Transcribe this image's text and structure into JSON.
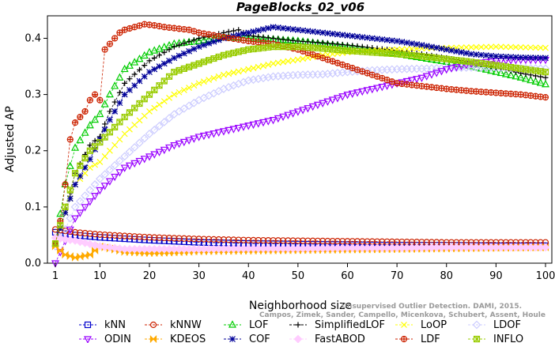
{
  "chart_data": {
    "type": "line",
    "title": "PageBlocks_02_v06",
    "xlabel": "Neighborhood size",
    "ylabel": "Adjusted AP",
    "xlim": [
      1,
      100
    ],
    "ylim": [
      0,
      0.44
    ],
    "xticks": [
      1,
      10,
      20,
      30,
      40,
      50,
      60,
      70,
      80,
      90,
      100
    ],
    "yticks": [
      0.0,
      0.1,
      0.2,
      0.3,
      0.4
    ],
    "ytick_labels": [
      "0.0",
      "0.1",
      "0.2",
      "0.3",
      "0.4"
    ],
    "grid": false,
    "legend_placement": "bottom",
    "watermark": [
      "Unsupervised Outlier Detection. DAMI, 2015.",
      "Campos, Zimek, Sander, Campello, Micenkova, Schubert, Assent, Houle"
    ],
    "series": [
      {
        "name": "kNN",
        "color": "#0000cc",
        "marker": "square",
        "line": "dash",
        "points": [
          [
            1,
            0.055
          ],
          [
            5,
            0.05
          ],
          [
            10,
            0.046
          ],
          [
            20,
            0.041
          ],
          [
            30,
            0.037
          ],
          [
            40,
            0.035
          ],
          [
            50,
            0.034
          ],
          [
            60,
            0.033
          ],
          [
            70,
            0.032
          ],
          [
            80,
            0.032
          ],
          [
            90,
            0.031
          ],
          [
            100,
            0.031
          ]
        ]
      },
      {
        "name": "kNNW",
        "color": "#cc2200",
        "marker": "circle",
        "line": "dash",
        "points": [
          [
            1,
            0.06
          ],
          [
            5,
            0.055
          ],
          [
            10,
            0.051
          ],
          [
            20,
            0.046
          ],
          [
            30,
            0.043
          ],
          [
            40,
            0.041
          ],
          [
            50,
            0.04
          ],
          [
            60,
            0.039
          ],
          [
            70,
            0.038
          ],
          [
            80,
            0.037
          ],
          [
            90,
            0.037
          ],
          [
            100,
            0.037
          ]
        ]
      },
      {
        "name": "LOF",
        "color": "#00cc00",
        "marker": "triangle-up",
        "line": "dash",
        "points": [
          [
            1,
            0.035
          ],
          [
            3,
            0.14
          ],
          [
            5,
            0.205
          ],
          [
            8,
            0.245
          ],
          [
            10,
            0.265
          ],
          [
            12,
            0.3
          ],
          [
            15,
            0.345
          ],
          [
            20,
            0.375
          ],
          [
            25,
            0.39
          ],
          [
            30,
            0.395
          ],
          [
            35,
            0.402
          ],
          [
            40,
            0.4
          ],
          [
            45,
            0.398
          ],
          [
            50,
            0.395
          ],
          [
            55,
            0.39
          ],
          [
            60,
            0.385
          ],
          [
            65,
            0.378
          ],
          [
            70,
            0.372
          ],
          [
            75,
            0.365
          ],
          [
            80,
            0.358
          ],
          [
            85,
            0.35
          ],
          [
            90,
            0.34
          ],
          [
            95,
            0.33
          ],
          [
            100,
            0.318
          ]
        ]
      },
      {
        "name": "SimplifiedLOF",
        "color": "#000000",
        "marker": "plus",
        "line": "dash",
        "points": [
          [
            1,
            0.035
          ],
          [
            3,
            0.09
          ],
          [
            5,
            0.16
          ],
          [
            8,
            0.21
          ],
          [
            10,
            0.225
          ],
          [
            12,
            0.27
          ],
          [
            15,
            0.32
          ],
          [
            20,
            0.36
          ],
          [
            25,
            0.385
          ],
          [
            30,
            0.4
          ],
          [
            35,
            0.41
          ],
          [
            38,
            0.415
          ],
          [
            40,
            0.405
          ],
          [
            45,
            0.4
          ],
          [
            50,
            0.395
          ],
          [
            55,
            0.392
          ],
          [
            60,
            0.388
          ],
          [
            65,
            0.383
          ],
          [
            70,
            0.378
          ],
          [
            75,
            0.372
          ],
          [
            80,
            0.365
          ],
          [
            85,
            0.357
          ],
          [
            90,
            0.348
          ],
          [
            95,
            0.338
          ],
          [
            100,
            0.33
          ]
        ]
      },
      {
        "name": "LoOP",
        "color": "#ffff00",
        "marker": "x",
        "line": "dash",
        "points": [
          [
            1,
            0.035
          ],
          [
            3,
            0.09
          ],
          [
            5,
            0.14
          ],
          [
            8,
            0.17
          ],
          [
            10,
            0.18
          ],
          [
            15,
            0.23
          ],
          [
            20,
            0.27
          ],
          [
            25,
            0.3
          ],
          [
            30,
            0.32
          ],
          [
            35,
            0.335
          ],
          [
            40,
            0.345
          ],
          [
            45,
            0.355
          ],
          [
            50,
            0.362
          ],
          [
            55,
            0.37
          ],
          [
            60,
            0.375
          ],
          [
            65,
            0.378
          ],
          [
            70,
            0.38
          ],
          [
            75,
            0.382
          ],
          [
            80,
            0.383
          ],
          [
            85,
            0.384
          ],
          [
            90,
            0.385
          ],
          [
            95,
            0.384
          ],
          [
            100,
            0.383
          ]
        ]
      },
      {
        "name": "LDOF",
        "color": "#ccccff",
        "marker": "diamond",
        "line": "dash",
        "points": [
          [
            1,
            0.03
          ],
          [
            3,
            0.06
          ],
          [
            5,
            0.1
          ],
          [
            10,
            0.15
          ],
          [
            15,
            0.19
          ],
          [
            20,
            0.23
          ],
          [
            25,
            0.265
          ],
          [
            30,
            0.29
          ],
          [
            35,
            0.31
          ],
          [
            40,
            0.325
          ],
          [
            45,
            0.332
          ],
          [
            50,
            0.335
          ],
          [
            55,
            0.336
          ],
          [
            60,
            0.34
          ],
          [
            65,
            0.343
          ],
          [
            70,
            0.345
          ],
          [
            75,
            0.346
          ],
          [
            80,
            0.347
          ],
          [
            85,
            0.348
          ],
          [
            90,
            0.348
          ],
          [
            95,
            0.347
          ],
          [
            100,
            0.346
          ]
        ]
      },
      {
        "name": "ODIN",
        "color": "#9900ff",
        "marker": "triangle-down",
        "line": "dash",
        "points": [
          [
            1,
            0.0
          ],
          [
            3,
            0.04
          ],
          [
            5,
            0.08
          ],
          [
            10,
            0.13
          ],
          [
            15,
            0.17
          ],
          [
            20,
            0.19
          ],
          [
            25,
            0.21
          ],
          [
            30,
            0.225
          ],
          [
            35,
            0.235
          ],
          [
            40,
            0.245
          ],
          [
            45,
            0.255
          ],
          [
            50,
            0.27
          ],
          [
            55,
            0.285
          ],
          [
            60,
            0.3
          ],
          [
            65,
            0.31
          ],
          [
            70,
            0.32
          ],
          [
            75,
            0.33
          ],
          [
            80,
            0.345
          ],
          [
            85,
            0.355
          ],
          [
            90,
            0.36
          ],
          [
            95,
            0.362
          ],
          [
            100,
            0.362
          ]
        ]
      },
      {
        "name": "KDEOS",
        "color": "#ffaa00",
        "marker": "bowtie",
        "line": "dash",
        "points": [
          [
            1,
            0.03
          ],
          [
            3,
            0.015
          ],
          [
            5,
            0.01
          ],
          [
            8,
            0.015
          ],
          [
            10,
            0.03
          ],
          [
            15,
            0.02
          ],
          [
            20,
            0.018
          ],
          [
            25,
            0.019
          ],
          [
            30,
            0.021
          ],
          [
            40,
            0.022
          ],
          [
            50,
            0.023
          ],
          [
            60,
            0.024
          ],
          [
            70,
            0.025
          ],
          [
            80,
            0.026
          ],
          [
            90,
            0.027
          ],
          [
            100,
            0.028
          ]
        ]
      },
      {
        "name": "COF",
        "color": "#000099",
        "marker": "asterisk",
        "line": "dash",
        "points": [
          [
            1,
            0.035
          ],
          [
            3,
            0.09
          ],
          [
            5,
            0.14
          ],
          [
            8,
            0.185
          ],
          [
            10,
            0.22
          ],
          [
            12,
            0.255
          ],
          [
            15,
            0.3
          ],
          [
            20,
            0.34
          ],
          [
            25,
            0.365
          ],
          [
            30,
            0.385
          ],
          [
            35,
            0.4
          ],
          [
            40,
            0.41
          ],
          [
            45,
            0.42
          ],
          [
            50,
            0.415
          ],
          [
            55,
            0.41
          ],
          [
            60,
            0.405
          ],
          [
            65,
            0.4
          ],
          [
            70,
            0.395
          ],
          [
            75,
            0.388
          ],
          [
            80,
            0.38
          ],
          [
            85,
            0.372
          ],
          [
            90,
            0.368
          ],
          [
            95,
            0.366
          ],
          [
            100,
            0.365
          ]
        ]
      },
      {
        "name": "FastABOD",
        "color": "#ffccff",
        "marker": "diamond-filled",
        "line": "dash",
        "points": [
          [
            1,
            0.045
          ],
          [
            5,
            0.04
          ],
          [
            10,
            0.03
          ],
          [
            15,
            0.025
          ],
          [
            20,
            0.025
          ],
          [
            30,
            0.025
          ],
          [
            40,
            0.026
          ],
          [
            50,
            0.026
          ],
          [
            60,
            0.027
          ],
          [
            70,
            0.027
          ],
          [
            80,
            0.028
          ],
          [
            90,
            0.028
          ],
          [
            100,
            0.028
          ]
        ]
      },
      {
        "name": "LDF",
        "color": "#cc2200",
        "marker": "circle-plus",
        "line": "dash",
        "points": [
          [
            1,
            0.035
          ],
          [
            2,
            0.075
          ],
          [
            3,
            0.14
          ],
          [
            4,
            0.22
          ],
          [
            5,
            0.25
          ],
          [
            7,
            0.27
          ],
          [
            8,
            0.29
          ],
          [
            9,
            0.3
          ],
          [
            10,
            0.29
          ],
          [
            11,
            0.38
          ],
          [
            12,
            0.39
          ],
          [
            13,
            0.4
          ],
          [
            14,
            0.41
          ],
          [
            15,
            0.415
          ],
          [
            17,
            0.42
          ],
          [
            19,
            0.425
          ],
          [
            21,
            0.423
          ],
          [
            23,
            0.42
          ],
          [
            25,
            0.418
          ],
          [
            28,
            0.415
          ],
          [
            30,
            0.41
          ],
          [
            35,
            0.402
          ],
          [
            40,
            0.395
          ],
          [
            45,
            0.39
          ],
          [
            50,
            0.38
          ],
          [
            55,
            0.365
          ],
          [
            60,
            0.35
          ],
          [
            65,
            0.335
          ],
          [
            70,
            0.32
          ],
          [
            75,
            0.315
          ],
          [
            80,
            0.31
          ],
          [
            85,
            0.306
          ],
          [
            90,
            0.303
          ],
          [
            95,
            0.3
          ],
          [
            100,
            0.295
          ]
        ]
      },
      {
        "name": "INFLO",
        "color": "#99cc00",
        "marker": "star-box",
        "line": "dash",
        "points": [
          [
            1,
            0.035
          ],
          [
            3,
            0.1
          ],
          [
            5,
            0.16
          ],
          [
            8,
            0.2
          ],
          [
            10,
            0.215
          ],
          [
            15,
            0.26
          ],
          [
            20,
            0.3
          ],
          [
            25,
            0.34
          ],
          [
            30,
            0.355
          ],
          [
            35,
            0.37
          ],
          [
            40,
            0.38
          ],
          [
            45,
            0.385
          ],
          [
            50,
            0.385
          ],
          [
            55,
            0.382
          ],
          [
            60,
            0.378
          ],
          [
            65,
            0.375
          ],
          [
            70,
            0.372
          ],
          [
            75,
            0.368
          ],
          [
            80,
            0.363
          ],
          [
            85,
            0.358
          ],
          [
            90,
            0.352
          ],
          [
            95,
            0.346
          ],
          [
            100,
            0.34
          ]
        ]
      }
    ]
  }
}
